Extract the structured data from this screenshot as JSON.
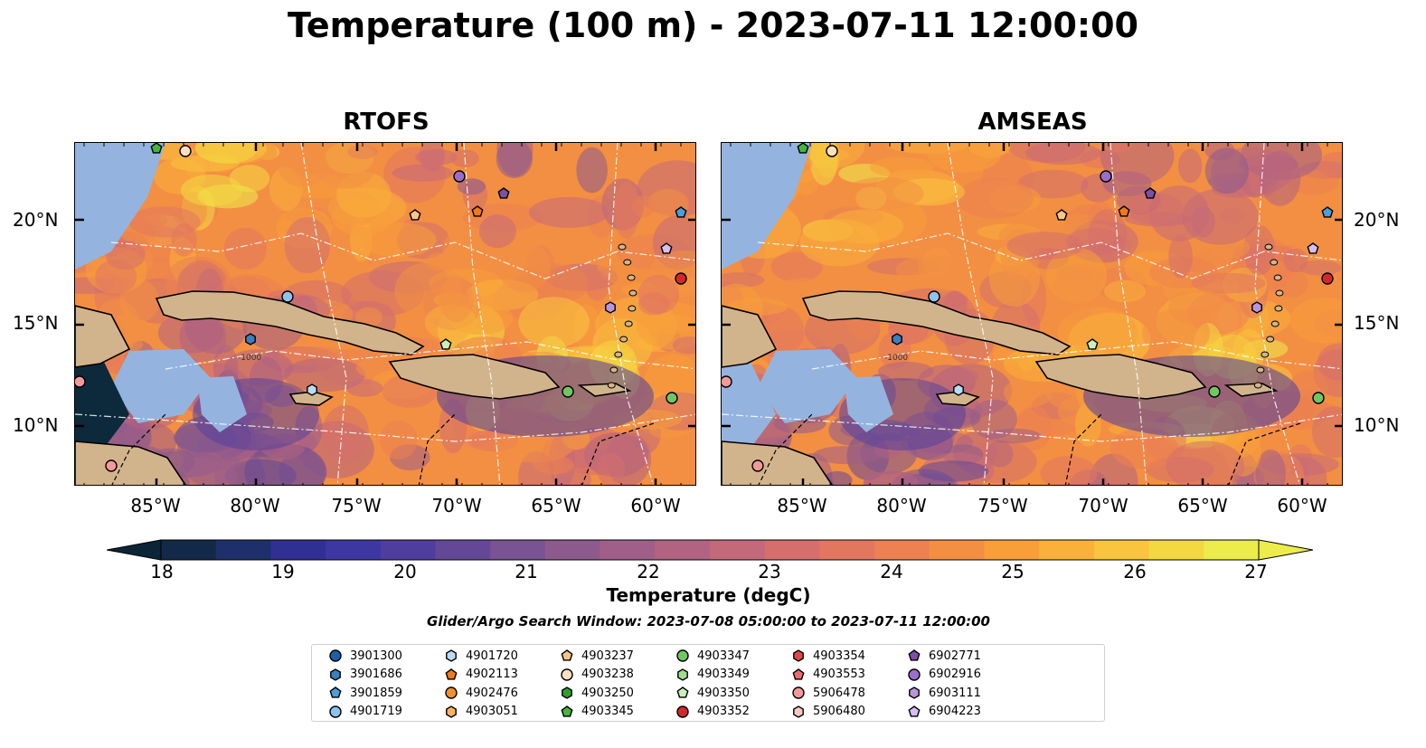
{
  "title": "Temperature (100 m) - 2023-07-11 12:00:00",
  "panels": [
    {
      "title": "RTOFS",
      "warm": 0.55
    },
    {
      "title": "AMSEAS",
      "warm": 0.6
    }
  ],
  "map_ticks": {
    "x": [
      "85°W",
      "80°W",
      "75°W",
      "70°W",
      "65°W",
      "60°W"
    ],
    "y": [
      "20°N",
      "15°N",
      "10°N"
    ]
  },
  "contour_labels": [
    "-1000",
    "-1000",
    "-1000",
    "-1000"
  ],
  "colorbar": {
    "label": "Temperature (degC)",
    "ticks": [
      "18",
      "19",
      "20",
      "21",
      "22",
      "23",
      "24",
      "25",
      "26",
      "27"
    ],
    "colors": [
      "#0b2537",
      "#13294a",
      "#1e2f6b",
      "#2f3091",
      "#3d37a1",
      "#4f3e9e",
      "#654797",
      "#7a5393",
      "#8d5a8e",
      "#a05f88",
      "#b36382",
      "#c4697a",
      "#d46f6e",
      "#e27760",
      "#ec8251",
      "#f38f43",
      "#f89f3a",
      "#fab13a",
      "#f9c43e",
      "#f4d842",
      "#ecec4b"
    ]
  },
  "search_window": "Glider/Argo Search Window: 2023-07-08 05:00:00 to 2023-07-11 12:00:00",
  "legend": [
    {
      "id": "3901300",
      "shape": "circle",
      "color": "#1f5fa8"
    },
    {
      "id": "3901686",
      "shape": "hexagon",
      "color": "#3a7fbf"
    },
    {
      "id": "3901859",
      "shape": "pentagon",
      "color": "#4aa0d8"
    },
    {
      "id": "4901719",
      "shape": "circle",
      "color": "#8fc3ee"
    },
    {
      "id": "4901720",
      "shape": "hexagon",
      "color": "#b9dcf6"
    },
    {
      "id": "4902113",
      "shape": "pentagon",
      "color": "#ee7a1c"
    },
    {
      "id": "4902476",
      "shape": "circle",
      "color": "#f3922c"
    },
    {
      "id": "4903051",
      "shape": "hexagon",
      "color": "#f9b262"
    },
    {
      "id": "4903237",
      "shape": "pentagon",
      "color": "#fac58a"
    },
    {
      "id": "4903238",
      "shape": "circle",
      "color": "#fde0c2"
    },
    {
      "id": "4903250",
      "shape": "hexagon",
      "color": "#2f9e2c"
    },
    {
      "id": "4903345",
      "shape": "pentagon",
      "color": "#45b53c"
    },
    {
      "id": "4903347",
      "shape": "circle",
      "color": "#71c664"
    },
    {
      "id": "4903349",
      "shape": "hexagon",
      "color": "#9fdc8e"
    },
    {
      "id": "4903350",
      "shape": "pentagon",
      "color": "#c8f0bd"
    },
    {
      "id": "4903352",
      "shape": "circle",
      "color": "#d2282a"
    },
    {
      "id": "4903354",
      "shape": "hexagon",
      "color": "#e04848"
    },
    {
      "id": "4903553",
      "shape": "pentagon",
      "color": "#ec6c6c"
    },
    {
      "id": "5906478",
      "shape": "circle",
      "color": "#f29a9a"
    },
    {
      "id": "5906480",
      "shape": "hexagon",
      "color": "#f9c6c6"
    },
    {
      "id": "6902771",
      "shape": "pentagon",
      "color": "#7c4fa8"
    },
    {
      "id": "6902916",
      "shape": "circle",
      "color": "#9c6ecb"
    },
    {
      "id": "6903111",
      "shape": "hexagon",
      "color": "#b996dc"
    },
    {
      "id": "6904223",
      "shape": "pentagon",
      "color": "#d6bff0"
    }
  ]
}
